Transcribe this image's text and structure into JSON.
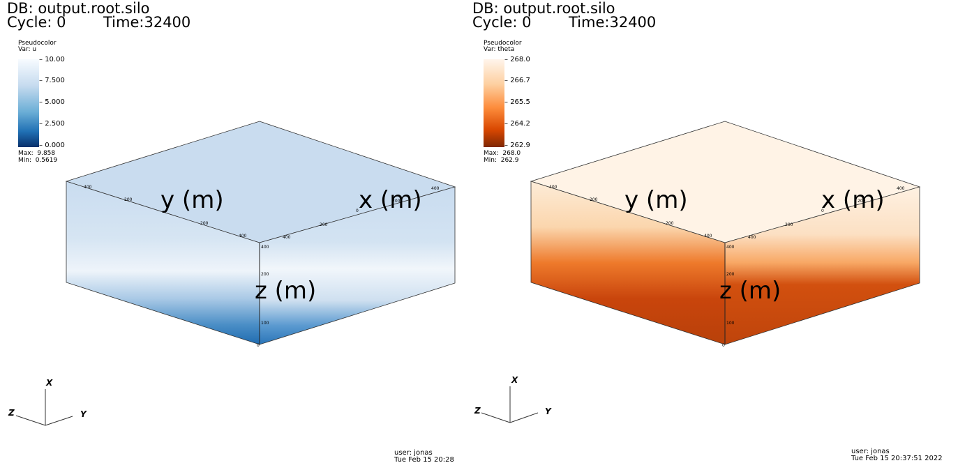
{
  "panels": [
    {
      "db": "DB: output.root.silo",
      "cycle": "Cycle: 0",
      "time": "Time:32400",
      "legend": {
        "title": "Pseudocolor",
        "var": "Var: u",
        "ticks": [
          "10.00",
          "7.500",
          "5.000",
          "2.500",
          "0.000"
        ],
        "max": "Max:  9.858",
        "min": "Min:  0.5619",
        "colors": [
          "#f7fbff",
          "#c6dbef",
          "#6baed6",
          "#2171b5",
          "#08306b"
        ]
      },
      "axes": {
        "y": "y (m)",
        "x": "x (m)",
        "z": "z (m)"
      },
      "box_ticks": {
        "y1": "400",
        "y2": "200",
        "y3": "200",
        "y4": "400",
        "x1": "400",
        "x2": "200",
        "x3": "0",
        "x4": "200",
        "x5": "400",
        "z1": "400",
        "z2": "200",
        "z3": "100",
        "z4": "0"
      },
      "triad": {
        "x": "X",
        "y": "Y",
        "z": "Z"
      },
      "user": "user: jonas",
      "date": "Tue Feb 15 20:28"
    },
    {
      "db": "DB: output.root.silo",
      "cycle": "Cycle: 0",
      "time": "Time:32400",
      "legend": {
        "title": "Pseudocolor",
        "var": "Var: theta",
        "ticks": [
          "268.0",
          "266.7",
          "265.5",
          "264.2",
          "262.9"
        ],
        "max": "Max:  268.0",
        "min": "Min:  262.9",
        "colors": [
          "#fff5eb",
          "#fdd0a2",
          "#fd8d3c",
          "#d94801",
          "#7f2704"
        ]
      },
      "axes": {
        "y": "y (m)",
        "x": "x (m)",
        "z": "z (m)"
      },
      "box_ticks": {
        "y1": "400",
        "y2": "200",
        "y3": "200",
        "y4": "400",
        "x1": "400",
        "x2": "200",
        "x3": "0",
        "x4": "200",
        "x5": "400",
        "z1": "400",
        "z2": "200",
        "z3": "100",
        "z4": "0"
      },
      "triad": {
        "x": "X",
        "y": "Y",
        "z": "Z"
      },
      "user": "user: jonas",
      "date": "Tue Feb 15 20:37:51 2022"
    }
  ]
}
